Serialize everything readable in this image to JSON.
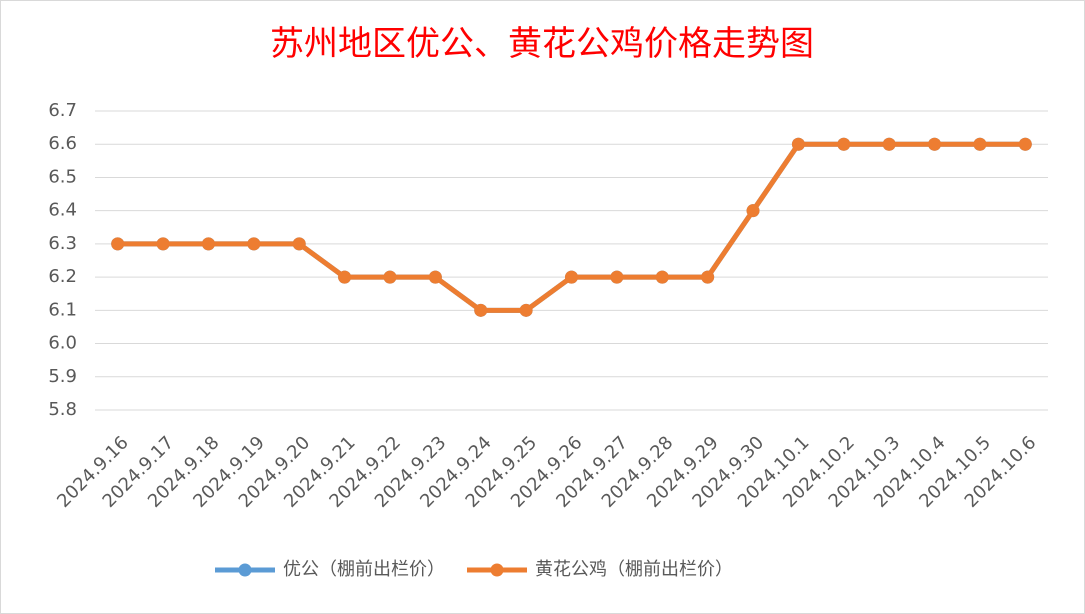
{
  "chart_data": {
    "type": "line",
    "title": "苏州地区优公、黄花公鸡价格走势图",
    "categories": [
      "2024.9.16",
      "2024.9.17",
      "2024.9.18",
      "2024.9.19",
      "2024.9.20",
      "2024.9.21",
      "2024.9.22",
      "2024.9.23",
      "2024.9.24",
      "2024.9.25",
      "2024.9.26",
      "2024.9.27",
      "2024.9.28",
      "2024.9.29",
      "2024.9.30",
      "2024.10.1",
      "2024.10.2",
      "2024.10.3",
      "2024.10.4",
      "2024.10.5",
      "2024.10.6"
    ],
    "series": [
      {
        "name": "优公（棚前出栏价）",
        "color": "#5b9bd5",
        "values": [
          6.3,
          6.3,
          6.3,
          6.3,
          6.3,
          6.2,
          6.2,
          6.2,
          6.1,
          6.1,
          6.2,
          6.2,
          6.2,
          6.2,
          6.4,
          6.6,
          6.6,
          6.6,
          6.6,
          6.6,
          6.6
        ]
      },
      {
        "name": "黄花公鸡（棚前出栏价）",
        "color": "#ed7d31",
        "values": [
          6.3,
          6.3,
          6.3,
          6.3,
          6.3,
          6.2,
          6.2,
          6.2,
          6.1,
          6.1,
          6.2,
          6.2,
          6.2,
          6.2,
          6.4,
          6.6,
          6.6,
          6.6,
          6.6,
          6.6,
          6.6
        ]
      }
    ],
    "ylim": [
      5.8,
      6.7
    ],
    "yticks": [
      5.8,
      5.9,
      {
        "value": 6,
        "label": "6.0"
      },
      6.1,
      6.2,
      6.3,
      6.4,
      6.5,
      6.6,
      6.7
    ],
    "grid": true,
    "legend": "bottom"
  }
}
